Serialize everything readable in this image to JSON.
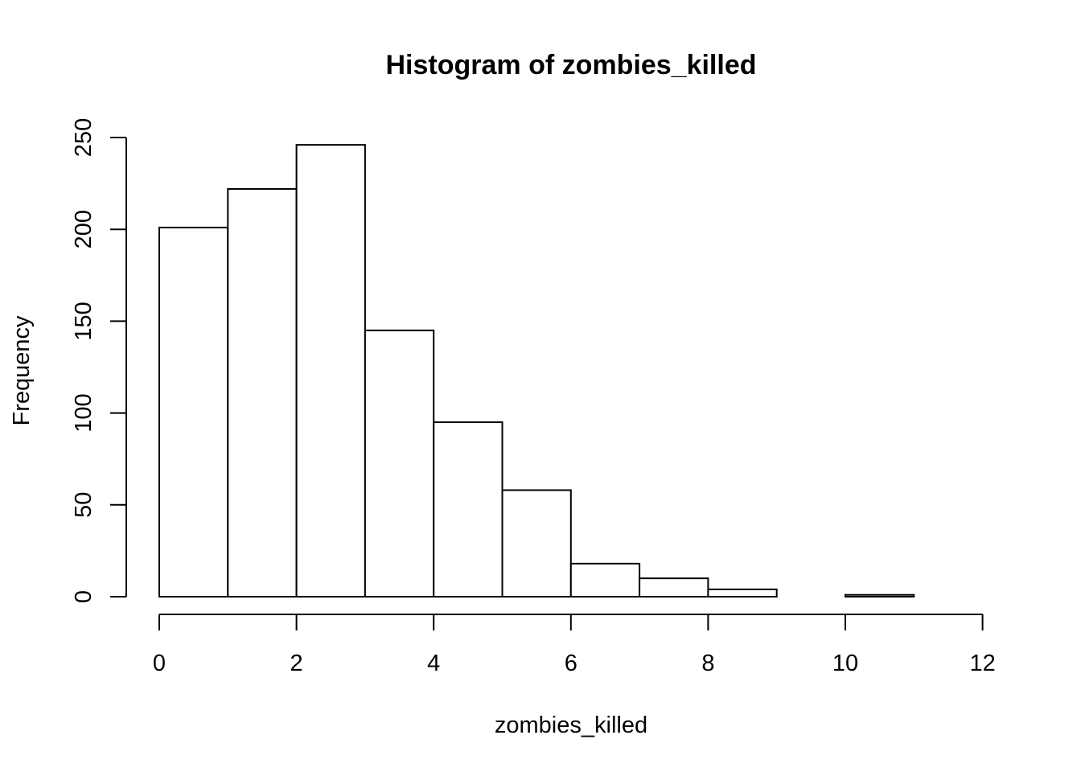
{
  "chart_data": {
    "type": "bar",
    "title": "Histogram of zombies_killed",
    "xlabel": "zombies_killed",
    "ylabel": "Frequency",
    "bins": [
      {
        "x0": 0,
        "x1": 1,
        "count": 201
      },
      {
        "x0": 1,
        "x1": 2,
        "count": 222
      },
      {
        "x0": 2,
        "x1": 3,
        "count": 246
      },
      {
        "x0": 3,
        "x1": 4,
        "count": 145
      },
      {
        "x0": 4,
        "x1": 5,
        "count": 95
      },
      {
        "x0": 5,
        "x1": 6,
        "count": 58
      },
      {
        "x0": 6,
        "x1": 7,
        "count": 18
      },
      {
        "x0": 7,
        "x1": 8,
        "count": 10
      },
      {
        "x0": 8,
        "x1": 9,
        "count": 4
      },
      {
        "x0": 9,
        "x1": 10,
        "count": 0
      },
      {
        "x0": 10,
        "x1": 11,
        "count": 1
      }
    ],
    "xlim": [
      0,
      12
    ],
    "ylim": [
      0,
      250
    ],
    "x_ticks": [
      "0",
      "2",
      "4",
      "6",
      "8",
      "10",
      "12"
    ],
    "y_ticks": [
      "0",
      "50",
      "100",
      "150",
      "200",
      "250"
    ],
    "grid": false,
    "legend": "none"
  }
}
